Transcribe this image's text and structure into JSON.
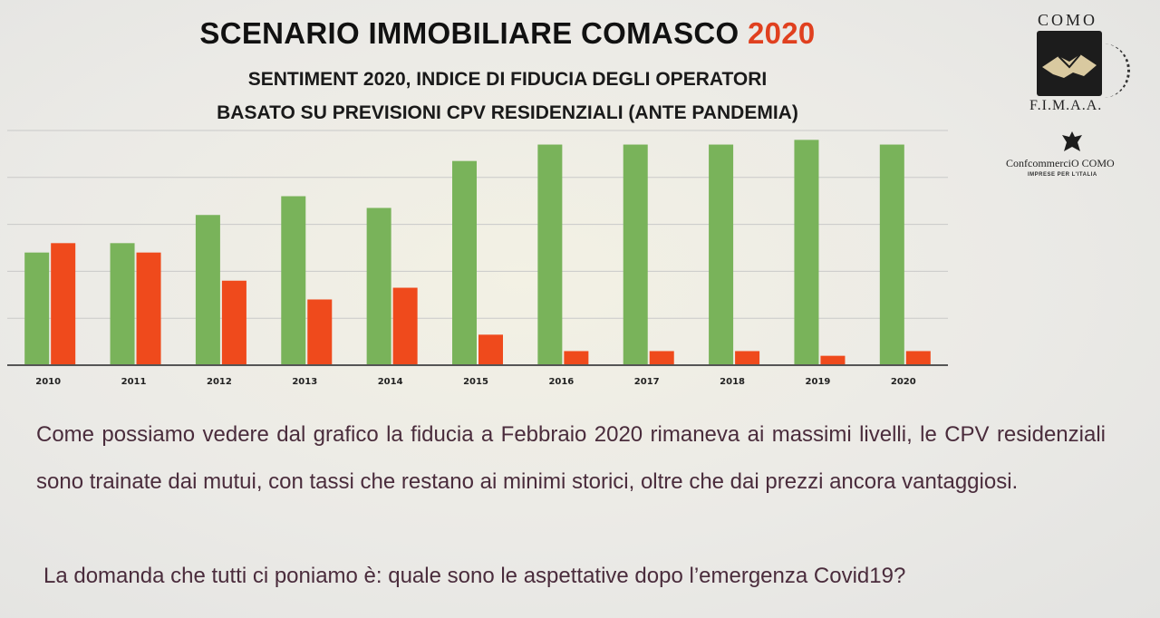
{
  "header": {
    "title_main": "SCENARIO IMMOBILIARE COMASCO",
    "title_year": "2020",
    "subtitle_1": "SENTIMENT 2020, INDICE DI FIDUCIA DEGLI OPERATORI",
    "subtitle_2": "BASATO SU PREVISIONI CPV RESIDENZIALI (ANTE PANDEMIA)"
  },
  "logos": {
    "como": "COMO",
    "fimaa": "F.I.M.A.A.",
    "confcommercio": "ConfcommerciO COMO",
    "confcommercio_sub": "IMPRESE PER L'ITALIA"
  },
  "body": {
    "paragraph_1": "Come possiamo vedere dal grafico la fiducia a Febbraio 2020 rimaneva ai massimi livelli, le CPV residenziali sono trainate dai mutui, con tassi che restano ai minimi storici, oltre che dai prezzi ancora vantaggiosi.",
    "paragraph_2": "La domanda che tutti ci poniamo è: quale sono le aspettative dopo l’emergenza Covid19?"
  },
  "colors": {
    "green": "#79b35a",
    "red": "#ef4a1c",
    "title_year": "#e0401f",
    "text": "#4a2c3c"
  },
  "chart_data": {
    "type": "bar",
    "categories": [
      "2010",
      "2011",
      "2012",
      "2013",
      "2014",
      "2015",
      "2016",
      "2017",
      "2018",
      "2019",
      "2020"
    ],
    "series": [
      {
        "color": "green",
        "values": [
          48,
          52,
          64,
          72,
          67,
          87,
          94,
          94,
          94,
          96,
          94
        ]
      },
      {
        "color": "red",
        "values": [
          52,
          48,
          36,
          28,
          33,
          13,
          6,
          6,
          6,
          4,
          6
        ]
      }
    ],
    "ylim": [
      0,
      100
    ],
    "grid": true,
    "legend": "none"
  }
}
